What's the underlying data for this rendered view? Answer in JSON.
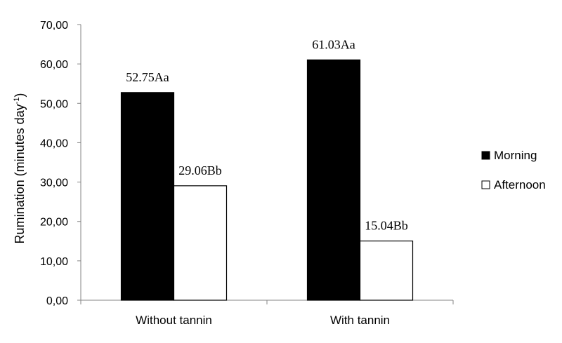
{
  "chart_data": {
    "type": "bar",
    "categories": [
      "Without tannin",
      "With tannin"
    ],
    "series": [
      {
        "name": "Morning",
        "values": [
          52.75,
          61.03
        ],
        "labels": [
          "52.75Aa",
          "61.03Aa"
        ],
        "color": "#000000"
      },
      {
        "name": "Afternoon",
        "values": [
          29.06,
          15.04
        ],
        "labels": [
          "29.06Bb",
          "15.04Bb"
        ],
        "color": "#ffffff"
      }
    ],
    "ylabel": "Rumination (minutes day",
    "ylabel_sup": "-1",
    "ylabel_close": ")",
    "ylim": [
      0,
      70
    ],
    "yticks": [
      "0,00",
      "10,00",
      "20,00",
      "30,00",
      "40,00",
      "50,00",
      "60,00",
      "70,00"
    ],
    "grid": false,
    "legend_position": "right"
  }
}
